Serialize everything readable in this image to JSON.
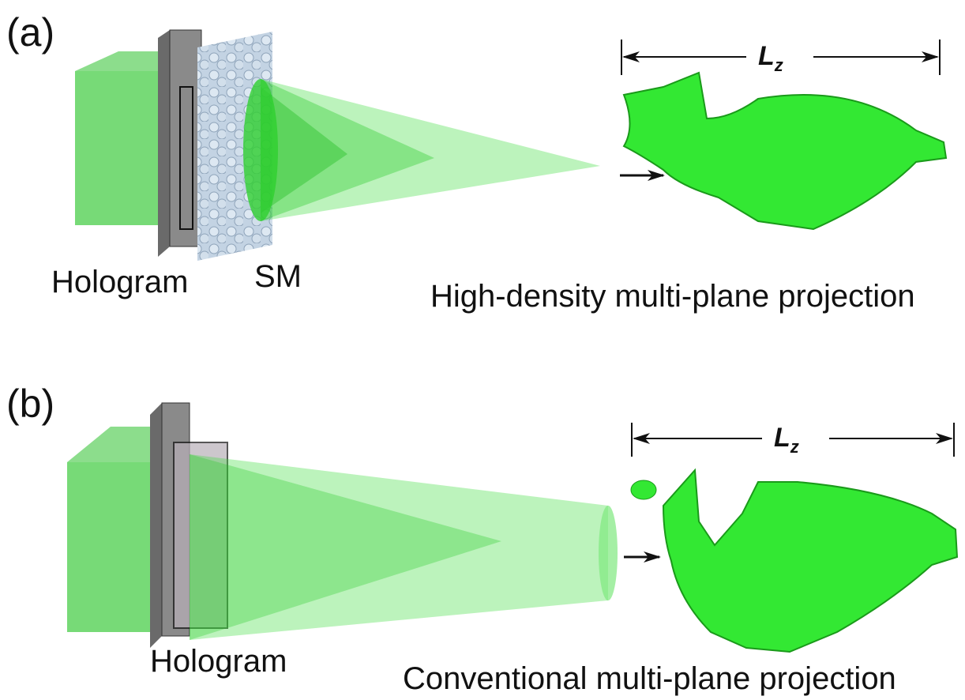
{
  "panels": [
    {
      "label": "(a)",
      "hologram": "Hologram",
      "modulator": "SM",
      "caption": "High-density multi-plane projection",
      "length": {
        "main": "L",
        "sub": "z"
      }
    },
    {
      "label": "(b)",
      "hologram": "Hologram",
      "caption": "Conventional multi-plane projection",
      "length": {
        "main": "L",
        "sub": "z"
      }
    }
  ]
}
